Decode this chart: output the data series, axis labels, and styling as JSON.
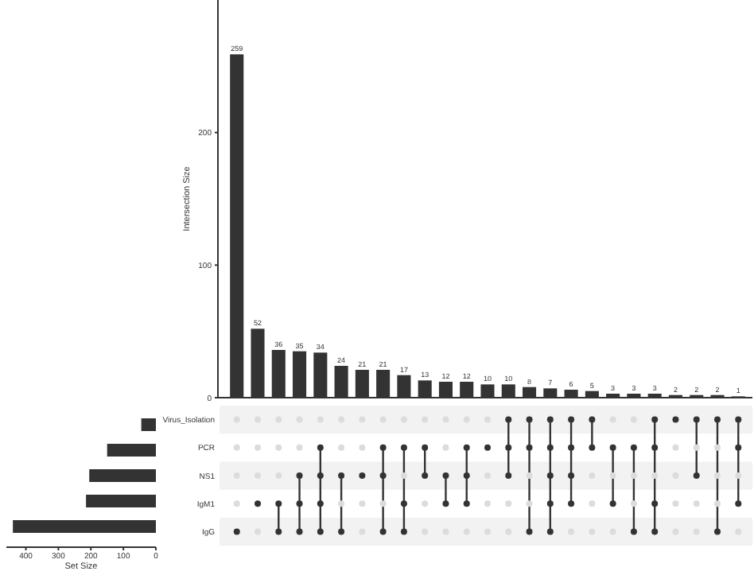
{
  "chart_data": [
    {
      "type": "bar",
      "ylabel": "Intersection Size",
      "categories": [
        null,
        null,
        null,
        null,
        null,
        null,
        null,
        null,
        null,
        null,
        null,
        null,
        null,
        null,
        null,
        null,
        null,
        null,
        null,
        null,
        null,
        null,
        null,
        null,
        null
      ],
      "values": [
        259,
        52,
        36,
        35,
        34,
        24,
        21,
        21,
        17,
        13,
        12,
        12,
        10,
        10,
        8,
        7,
        6,
        5,
        3,
        3,
        3,
        2,
        2,
        2,
        1
      ],
      "color": "#333333",
      "ylim": [
        0,
        300
      ],
      "yticks": [
        0,
        100,
        200
      ],
      "data_labels": true,
      "grid": false
    },
    {
      "type": "bar",
      "orientation": "horizontal",
      "xlabel": "Set Size",
      "categories": [
        "Virus_Isolation",
        "PCR",
        "NS1",
        "IgM1",
        "IgG"
      ],
      "values": [
        45,
        150,
        205,
        215,
        440
      ],
      "color": "#333333",
      "xlim": [
        460,
        0
      ],
      "xticks": [
        400,
        300,
        200,
        100,
        0
      ],
      "tick_labels": "x"
    },
    {
      "type": "other",
      "cells": [
        [
          false,
          false,
          false,
          false,
          false,
          false,
          false,
          false,
          false,
          false,
          false,
          false,
          false,
          true,
          true,
          true,
          true,
          true,
          false,
          false,
          true,
          true,
          true,
          true,
          true
        ],
        [
          false,
          false,
          false,
          false,
          true,
          false,
          false,
          true,
          true,
          true,
          false,
          true,
          true,
          true,
          true,
          true,
          true,
          true,
          true,
          true,
          true,
          false,
          false,
          false,
          true
        ],
        [
          false,
          false,
          false,
          true,
          true,
          true,
          true,
          true,
          false,
          true,
          true,
          true,
          false,
          true,
          false,
          true,
          true,
          false,
          false,
          false,
          false,
          false,
          true,
          false,
          false
        ],
        [
          false,
          true,
          true,
          true,
          true,
          false,
          false,
          false,
          true,
          false,
          true,
          true,
          false,
          false,
          false,
          true,
          true,
          false,
          true,
          false,
          true,
          false,
          false,
          false,
          true
        ],
        [
          true,
          false,
          true,
          true,
          true,
          true,
          false,
          true,
          true,
          false,
          false,
          false,
          false,
          false,
          true,
          true,
          false,
          false,
          false,
          true,
          true,
          false,
          false,
          true,
          false
        ]
      ]
    }
  ]
}
